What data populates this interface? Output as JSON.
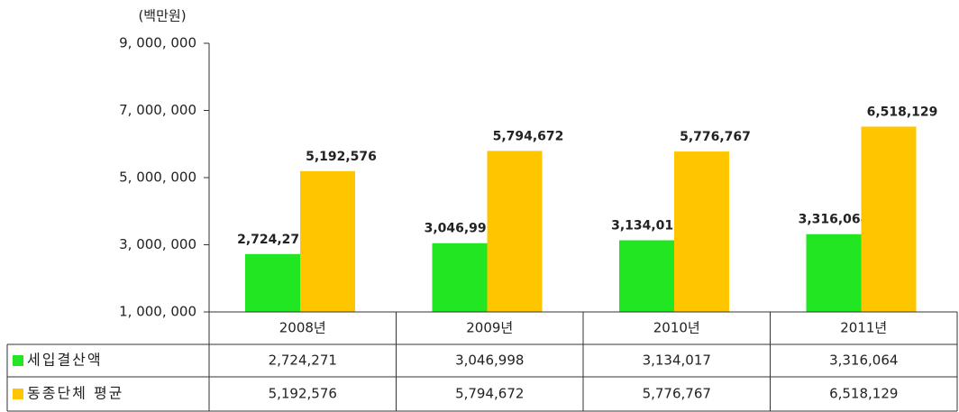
{
  "chart_data": {
    "type": "bar",
    "y_label": "(백만원)",
    "categories": [
      "2008년",
      "2009년",
      "2010년",
      "2011년"
    ],
    "series": [
      {
        "name": "세입결산액",
        "color": "#22e622",
        "values": [
          2724271,
          3046998,
          3134017,
          3316064
        ],
        "value_labels": [
          "2,724,271",
          "3,046,998",
          "3,134,017",
          "3,316,064"
        ]
      },
      {
        "name": "동종단체 평균",
        "color": "#ffc600",
        "values": [
          5192576,
          5794672,
          5776767,
          6518129
        ],
        "value_labels": [
          "5,192,576",
          "5,794,672",
          "5,776,767",
          "6,518,129"
        ]
      }
    ],
    "ylim": [
      1000000,
      9000000
    ],
    "yticks": [
      {
        "value": 1000000,
        "label": "1, 000, 000"
      },
      {
        "value": 3000000,
        "label": "3, 000, 000"
      },
      {
        "value": 5000000,
        "label": "5, 000, 000"
      },
      {
        "value": 7000000,
        "label": "7, 000, 000"
      },
      {
        "value": 9000000,
        "label": "9, 000, 000"
      }
    ]
  }
}
